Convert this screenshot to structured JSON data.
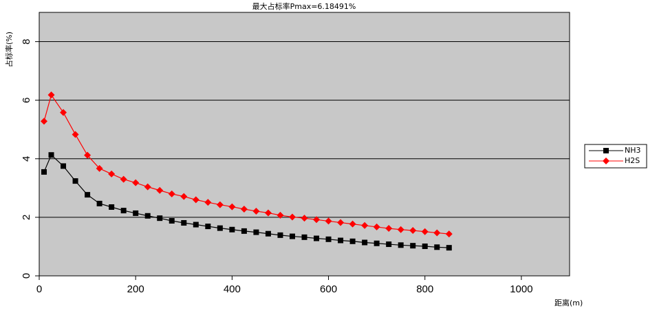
{
  "chart_data": {
    "type": "line",
    "title": "最大占标率Pmax=6.18491%",
    "x_label": "距离(m)",
    "y_label": "占标率(%)",
    "x": [
      10,
      25,
      50,
      75,
      100,
      125,
      150,
      175,
      200,
      225,
      250,
      275,
      300,
      325,
      350,
      375,
      400,
      425,
      450,
      475,
      500,
      525,
      550,
      575,
      600,
      625,
      650,
      675,
      700,
      725,
      750,
      775,
      800,
      825,
      850
    ],
    "series": [
      {
        "name": "NH3",
        "color": "#000000",
        "marker": "square",
        "values": [
          3.55,
          4.13,
          3.75,
          3.24,
          2.77,
          2.47,
          2.35,
          2.23,
          2.14,
          2.05,
          1.97,
          1.88,
          1.81,
          1.75,
          1.69,
          1.63,
          1.58,
          1.53,
          1.49,
          1.44,
          1.39,
          1.35,
          1.32,
          1.28,
          1.25,
          1.21,
          1.18,
          1.14,
          1.11,
          1.08,
          1.05,
          1.03,
          1.01,
          0.98,
          0.96
        ]
      },
      {
        "name": "H2S",
        "color": "#ff0000",
        "marker": "diamond",
        "values": [
          5.28,
          6.18,
          5.58,
          4.83,
          4.12,
          3.67,
          3.48,
          3.3,
          3.18,
          3.04,
          2.92,
          2.8,
          2.71,
          2.6,
          2.51,
          2.43,
          2.36,
          2.28,
          2.21,
          2.15,
          2.07,
          2.01,
          1.97,
          1.92,
          1.87,
          1.82,
          1.77,
          1.72,
          1.67,
          1.62,
          1.58,
          1.55,
          1.51,
          1.47,
          1.43
        ]
      }
    ],
    "xlim": [
      0,
      1100
    ],
    "xticks": [
      0,
      200,
      400,
      600,
      800,
      1000
    ],
    "ylim": [
      0,
      9
    ],
    "yticks": [
      0,
      2,
      4,
      6,
      8
    ],
    "grid": true,
    "legend": "right"
  }
}
